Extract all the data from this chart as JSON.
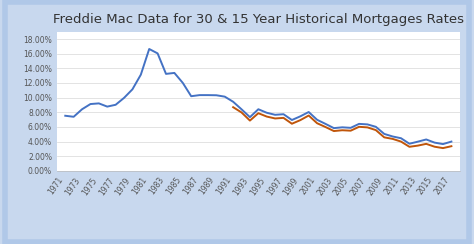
{
  "title": "Freddie Mac Data for 30 & 15 Year Historical Mortgages Rates",
  "title_fontsize": 9.5,
  "background_color": "#c8d8ee",
  "plot_background_color": "#ffffff",
  "ylim": [
    0.0,
    0.19
  ],
  "yticks": [
    0.0,
    0.02,
    0.04,
    0.06,
    0.08,
    0.1,
    0.12,
    0.14,
    0.16,
    0.18
  ],
  "ytick_labels": [
    "0.00%",
    "2.00%",
    "4.00%",
    "6.00%",
    "8.00%",
    "10.00%",
    "12.00%",
    "14.00%",
    "16.00%",
    "18.00%"
  ],
  "years_30": [
    1971,
    1972,
    1973,
    1974,
    1975,
    1976,
    1977,
    1978,
    1979,
    1980,
    1981,
    1982,
    1983,
    1984,
    1985,
    1986,
    1987,
    1988,
    1989,
    1990,
    1991,
    1992,
    1993,
    1994,
    1995,
    1996,
    1997,
    1998,
    1999,
    2000,
    2001,
    2002,
    2003,
    2004,
    2005,
    2006,
    2007,
    2008,
    2009,
    2010,
    2011,
    2012,
    2013,
    2014,
    2015,
    2016,
    2017
  ],
  "rate_30": [
    0.0752,
    0.0738,
    0.0841,
    0.0912,
    0.0921,
    0.0877,
    0.0902,
    0.0996,
    0.1113,
    0.1313,
    0.1664,
    0.1604,
    0.1324,
    0.1337,
    0.1201,
    0.1019,
    0.1034,
    0.1034,
    0.1032,
    0.1013,
    0.0943,
    0.084,
    0.0733,
    0.0841,
    0.0793,
    0.0765,
    0.0773,
    0.0694,
    0.0744,
    0.0803,
    0.0697,
    0.0641,
    0.0583,
    0.0594,
    0.0587,
    0.0641,
    0.0634,
    0.0601,
    0.0504,
    0.0469,
    0.0445,
    0.037,
    0.0398,
    0.0428,
    0.0385,
    0.0365,
    0.0399
  ],
  "years_15": [
    1991,
    1992,
    1993,
    1994,
    1995,
    1996,
    1997,
    1998,
    1999,
    2000,
    2001,
    2002,
    2003,
    2004,
    2005,
    2006,
    2007,
    2008,
    2009,
    2010,
    2011,
    2012,
    2013,
    2014,
    2015,
    2016,
    2017
  ],
  "rate_15": [
    0.0869,
    0.0797,
    0.0686,
    0.0787,
    0.0741,
    0.0715,
    0.0723,
    0.0643,
    0.0692,
    0.0755,
    0.065,
    0.0598,
    0.0543,
    0.0554,
    0.0548,
    0.0601,
    0.0593,
    0.0556,
    0.0457,
    0.0436,
    0.0399,
    0.0328,
    0.0344,
    0.0368,
    0.0329,
    0.031,
    0.0336
  ],
  "color_30": "#4472c4",
  "color_15": "#c0550a",
  "line_width": 1.4,
  "xtick_years": [
    1971,
    1973,
    1975,
    1977,
    1979,
    1981,
    1983,
    1985,
    1987,
    1989,
    1991,
    1993,
    1995,
    1997,
    1999,
    2001,
    2003,
    2005,
    2007,
    2009,
    2011,
    2013,
    2015,
    2017
  ],
  "grid_color": "#d8d8d8",
  "border_color": "#b0c8e8",
  "border_width": 6,
  "xlim": [
    1970,
    2018
  ]
}
